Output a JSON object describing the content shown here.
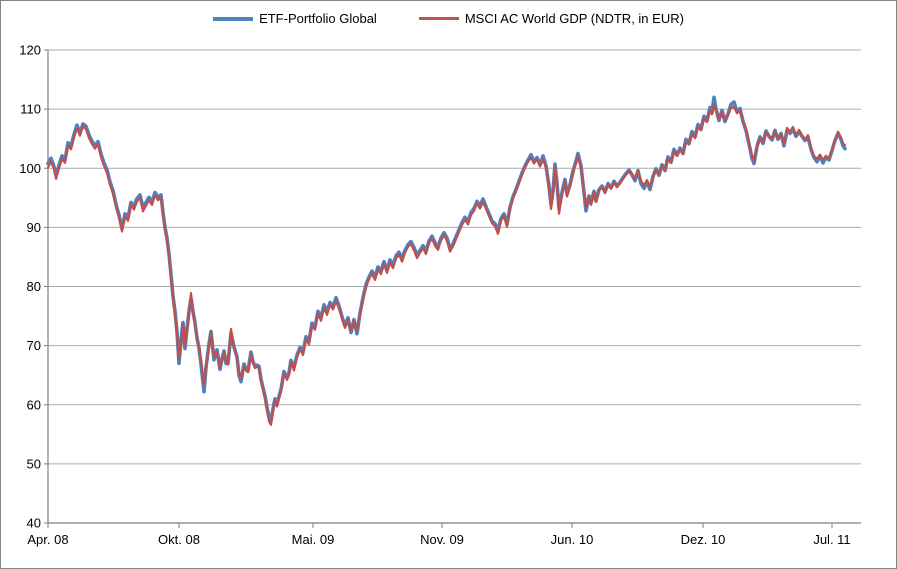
{
  "chart_data": {
    "type": "line",
    "title": "",
    "xlabel": "",
    "ylabel": "",
    "ylim": [
      40,
      120
    ],
    "y_ticks": [
      40,
      50,
      60,
      70,
      80,
      90,
      100,
      110,
      120
    ],
    "grid": "horizontal",
    "legend_position": "top-center",
    "x_unit": "trading-day index from Apr. 08",
    "x_axis_range": [
      0,
      813
    ],
    "x_ticks": [
      {
        "label": "Apr. 08",
        "i": 0
      },
      {
        "label": "Okt. 08",
        "i": 131
      },
      {
        "label": "Mai. 09",
        "i": 265
      },
      {
        "label": "Nov. 09",
        "i": 394
      },
      {
        "label": "Jun. 10",
        "i": 524
      },
      {
        "label": "Dez. 10",
        "i": 655
      },
      {
        "label": "Jul. 11",
        "i": 784
      }
    ],
    "series": [
      {
        "name": "ETF-Portfolio Global",
        "color": "#4F81BD",
        "line_width": 3.6
      },
      {
        "name": "MSCI AC World GDP (NDTR, in EUR)",
        "color": "#C0504D",
        "line_width": 2.2
      }
    ],
    "points_format": "[x_index, ETF-Portfolio Global, MSCI AC World GDP]",
    "points": [
      [
        0,
        100.8,
        100.1
      ],
      [
        3,
        101.7,
        101.2
      ],
      [
        6,
        100.3,
        99.8
      ],
      [
        8,
        98.8,
        98.2
      ],
      [
        11,
        100.5,
        100.0
      ],
      [
        14,
        102.1,
        101.6
      ],
      [
        17,
        101.4,
        100.9
      ],
      [
        20,
        104.3,
        103.8
      ],
      [
        23,
        103.7,
        103.2
      ],
      [
        26,
        105.7,
        105.2
      ],
      [
        29,
        107.3,
        106.8
      ],
      [
        32,
        106.0,
        105.5
      ],
      [
        35,
        107.5,
        107.1
      ],
      [
        38,
        107.1,
        106.6
      ],
      [
        41,
        105.6,
        105.1
      ],
      [
        44,
        104.6,
        104.1
      ],
      [
        47,
        103.8,
        103.3
      ],
      [
        50,
        104.5,
        104.1
      ],
      [
        53,
        102.4,
        101.9
      ],
      [
        56,
        100.9,
        100.4
      ],
      [
        59,
        99.7,
        99.2
      ],
      [
        62,
        97.7,
        97.2
      ],
      [
        65,
        96.2,
        95.7
      ],
      [
        68,
        93.9,
        93.4
      ],
      [
        71,
        92.1,
        91.6
      ],
      [
        74,
        89.8,
        89.3
      ],
      [
        77,
        92.3,
        91.9
      ],
      [
        80,
        91.6,
        91.1
      ],
      [
        83,
        94.2,
        93.8
      ],
      [
        86,
        93.5,
        93.0
      ],
      [
        89,
        94.9,
        94.4
      ],
      [
        92,
        95.5,
        95.0
      ],
      [
        95,
        93.3,
        92.7
      ],
      [
        98,
        94.2,
        93.7
      ],
      [
        101,
        95.1,
        94.6
      ],
      [
        104,
        94.3,
        93.8
      ],
      [
        107,
        95.9,
        95.5
      ],
      [
        110,
        95.1,
        94.6
      ],
      [
        113,
        95.5,
        95.1
      ],
      [
        115,
        92.5,
        92.0
      ],
      [
        117,
        90.0,
        89.5
      ],
      [
        119,
        88.2,
        87.7
      ],
      [
        121,
        85.5,
        85.0
      ],
      [
        123,
        82.0,
        81.5
      ],
      [
        125,
        78.4,
        78.0
      ],
      [
        127,
        75.8,
        75.4
      ],
      [
        129,
        72.3,
        72.0
      ],
      [
        131,
        67.0,
        67.8
      ],
      [
        133,
        70.9,
        70.5
      ],
      [
        135,
        73.9,
        73.6
      ],
      [
        137,
        69.5,
        70.0
      ],
      [
        139,
        72.8,
        72.5
      ],
      [
        141,
        75.8,
        75.5
      ],
      [
        143,
        78.0,
        78.9
      ],
      [
        145,
        75.8,
        75.5
      ],
      [
        147,
        73.9,
        73.5
      ],
      [
        149,
        71.3,
        71.0
      ],
      [
        151,
        69.6,
        70.0
      ],
      [
        153,
        66.9,
        67.5
      ],
      [
        156,
        62.2,
        63.4
      ],
      [
        158,
        66.3,
        66.0
      ],
      [
        161,
        70.3,
        70.0
      ],
      [
        163,
        72.4,
        72.2
      ],
      [
        166,
        67.6,
        68.0
      ],
      [
        169,
        69.3,
        69.0
      ],
      [
        172,
        66.0,
        66.3
      ],
      [
        174,
        67.8,
        67.5
      ],
      [
        176,
        69.1,
        68.8
      ],
      [
        178,
        67.0,
        67.3
      ],
      [
        180,
        67.0,
        66.8
      ],
      [
        183,
        72.1,
        72.8
      ],
      [
        186,
        69.8,
        69.5
      ],
      [
        189,
        68.1,
        67.8
      ],
      [
        191,
        65.0,
        65.3
      ],
      [
        193,
        63.9,
        64.5
      ],
      [
        196,
        66.9,
        66.6
      ],
      [
        198,
        66.0,
        65.8
      ],
      [
        200,
        65.8,
        65.5
      ],
      [
        203,
        68.9,
        68.5
      ],
      [
        205,
        67.3,
        67.0
      ],
      [
        207,
        66.5,
        66.2
      ],
      [
        209,
        66.7,
        66.4
      ],
      [
        211,
        66.5,
        66.3
      ],
      [
        213,
        64.3,
        64.0
      ],
      [
        215,
        62.9,
        62.5
      ],
      [
        217,
        61.5,
        61.0
      ],
      [
        219,
        59.6,
        59.0
      ],
      [
        221,
        57.9,
        57.2
      ],
      [
        223,
        57.4,
        56.6
      ],
      [
        225,
        59.3,
        58.8
      ],
      [
        227,
        61.0,
        60.6
      ],
      [
        229,
        60.2,
        59.7
      ],
      [
        231,
        61.4,
        61.0
      ],
      [
        233,
        62.6,
        62.2
      ],
      [
        236,
        65.6,
        65.3
      ],
      [
        239,
        64.6,
        64.2
      ],
      [
        241,
        65.4,
        65.0
      ],
      [
        243,
        67.5,
        67.2
      ],
      [
        246,
        66.3,
        65.8
      ],
      [
        249,
        68.4,
        68.0
      ],
      [
        252,
        69.7,
        69.4
      ],
      [
        255,
        68.9,
        68.4
      ],
      [
        258,
        71.5,
        71.1
      ],
      [
        261,
        70.7,
        70.2
      ],
      [
        264,
        73.8,
        73.4
      ],
      [
        267,
        73.2,
        72.7
      ],
      [
        270,
        75.8,
        75.4
      ],
      [
        273,
        74.7,
        74.2
      ],
      [
        276,
        76.9,
        76.4
      ],
      [
        279,
        75.7,
        75.2
      ],
      [
        282,
        77.3,
        76.9
      ],
      [
        285,
        76.6,
        76.1
      ],
      [
        288,
        78.1,
        77.5
      ],
      [
        291,
        76.7,
        76.3
      ],
      [
        294,
        74.9,
        74.6
      ],
      [
        297,
        73.3,
        73.0
      ],
      [
        300,
        74.7,
        74.4
      ],
      [
        303,
        72.2,
        72.6
      ],
      [
        306,
        74.4,
        74.1
      ],
      [
        309,
        72.0,
        72.5
      ],
      [
        312,
        75.5,
        75.1
      ],
      [
        315,
        78.1,
        77.7
      ],
      [
        318,
        80.3,
        79.9
      ],
      [
        321,
        81.6,
        81.2
      ],
      [
        324,
        82.6,
        82.2
      ],
      [
        327,
        81.6,
        81.1
      ],
      [
        330,
        83.3,
        82.9
      ],
      [
        333,
        82.6,
        82.1
      ],
      [
        336,
        84.2,
        83.7
      ],
      [
        339,
        82.7,
        82.3
      ],
      [
        342,
        84.5,
        84.1
      ],
      [
        345,
        83.6,
        83.1
      ],
      [
        348,
        85.2,
        84.7
      ],
      [
        351,
        85.8,
        85.4
      ],
      [
        354,
        84.7,
        84.2
      ],
      [
        357,
        86.1,
        85.7
      ],
      [
        360,
        87.1,
        86.7
      ],
      [
        363,
        87.6,
        87.2
      ],
      [
        366,
        86.6,
        86.1
      ],
      [
        369,
        85.3,
        84.8
      ],
      [
        372,
        86.1,
        85.7
      ],
      [
        375,
        86.9,
        86.5
      ],
      [
        378,
        86.0,
        85.5
      ],
      [
        381,
        87.7,
        87.3
      ],
      [
        384,
        88.5,
        88.1
      ],
      [
        387,
        87.4,
        86.9
      ],
      [
        390,
        86.7,
        86.2
      ],
      [
        393,
        88.2,
        87.8
      ],
      [
        396,
        89.1,
        88.7
      ],
      [
        399,
        88.2,
        87.7
      ],
      [
        402,
        86.4,
        85.9
      ],
      [
        405,
        87.2,
        86.8
      ],
      [
        408,
        88.4,
        88.0
      ],
      [
        411,
        89.6,
        89.2
      ],
      [
        414,
        90.8,
        90.4
      ],
      [
        417,
        91.7,
        91.3
      ],
      [
        420,
        91.0,
        90.5
      ],
      [
        423,
        92.5,
        92.1
      ],
      [
        426,
        93.2,
        92.8
      ],
      [
        429,
        94.4,
        94.0
      ],
      [
        432,
        93.6,
        93.2
      ],
      [
        435,
        94.8,
        94.3
      ],
      [
        438,
        93.5,
        93.1
      ],
      [
        441,
        92.3,
        91.9
      ],
      [
        444,
        91.1,
        90.7
      ],
      [
        447,
        90.6,
        90.2
      ],
      [
        450,
        89.5,
        88.9
      ],
      [
        453,
        91.5,
        91.1
      ],
      [
        456,
        92.3,
        91.9
      ],
      [
        459,
        90.5,
        90.1
      ],
      [
        462,
        93.4,
        93.1
      ],
      [
        465,
        95.2,
        94.9
      ],
      [
        468,
        96.4,
        96.1
      ],
      [
        471,
        97.8,
        97.5
      ],
      [
        474,
        99.2,
        98.9
      ],
      [
        477,
        100.4,
        100.1
      ],
      [
        480,
        101.4,
        101.1
      ],
      [
        483,
        102.3,
        101.8
      ],
      [
        486,
        101.1,
        100.8
      ],
      [
        489,
        101.8,
        101.5
      ],
      [
        492,
        100.6,
        100.3
      ],
      [
        495,
        102.1,
        101.5
      ],
      [
        498,
        100.4,
        100.1
      ],
      [
        501,
        97.0,
        96.7
      ],
      [
        503,
        93.8,
        93.1
      ],
      [
        505,
        96.1,
        95.7
      ],
      [
        507,
        100.7,
        100.4
      ],
      [
        509,
        97.4,
        97.1
      ],
      [
        511,
        93.2,
        92.3
      ],
      [
        514,
        95.9,
        95.5
      ],
      [
        517,
        98.1,
        97.8
      ],
      [
        519,
        95.6,
        95.2
      ],
      [
        522,
        97.2,
        96.9
      ],
      [
        525,
        99.5,
        99.2
      ],
      [
        528,
        101.2,
        100.9
      ],
      [
        530,
        102.5,
        101.9
      ],
      [
        533,
        100.4,
        100.1
      ],
      [
        535,
        97.4,
        97.2
      ],
      [
        538,
        92.8,
        93.4
      ],
      [
        541,
        95.3,
        95.1
      ],
      [
        543,
        94.1,
        93.8
      ],
      [
        546,
        96.1,
        95.9
      ],
      [
        548,
        94.5,
        94.3
      ],
      [
        551,
        96.4,
        96.2
      ],
      [
        554,
        97.0,
        96.8
      ],
      [
        557,
        96.0,
        95.8
      ],
      [
        560,
        97.4,
        97.2
      ],
      [
        563,
        96.7,
        96.5
      ],
      [
        566,
        97.8,
        97.6
      ],
      [
        569,
        97.0,
        96.8
      ],
      [
        572,
        97.6,
        97.4
      ],
      [
        575,
        98.4,
        98.2
      ],
      [
        578,
        99.1,
        98.9
      ],
      [
        581,
        99.7,
        99.5
      ],
      [
        584,
        98.9,
        99.1
      ],
      [
        587,
        97.9,
        98.2
      ],
      [
        590,
        99.6,
        99.5
      ],
      [
        593,
        97.4,
        97.9
      ],
      [
        596,
        96.6,
        97.1
      ],
      [
        599,
        97.7,
        98.0
      ],
      [
        602,
        96.4,
        96.8
      ],
      [
        605,
        98.6,
        98.5
      ],
      [
        608,
        99.9,
        99.7
      ],
      [
        611,
        98.8,
        99.0
      ],
      [
        614,
        100.6,
        100.4
      ],
      [
        617,
        99.6,
        99.7
      ],
      [
        620,
        101.9,
        101.6
      ],
      [
        623,
        101.0,
        100.9
      ],
      [
        626,
        103.2,
        102.9
      ],
      [
        629,
        102.2,
        102.1
      ],
      [
        632,
        103.4,
        103.1
      ],
      [
        635,
        102.5,
        102.4
      ],
      [
        638,
        104.9,
        104.5
      ],
      [
        641,
        104.2,
        104.0
      ],
      [
        644,
        106.2,
        105.8
      ],
      [
        647,
        105.3,
        105.1
      ],
      [
        650,
        107.4,
        107.0
      ],
      [
        653,
        106.6,
        106.4
      ],
      [
        656,
        108.8,
        108.4
      ],
      [
        659,
        108.0,
        107.8
      ],
      [
        662,
        110.3,
        109.8
      ],
      [
        664,
        109.4,
        109.1
      ],
      [
        666,
        112.0,
        110.7
      ],
      [
        668,
        110.0,
        109.6
      ],
      [
        671,
        108.1,
        108.4
      ],
      [
        674,
        109.8,
        109.5
      ],
      [
        677,
        107.9,
        108.1
      ],
      [
        680,
        109.2,
        109.0
      ],
      [
        683,
        110.8,
        110.2
      ],
      [
        686,
        111.2,
        110.4
      ],
      [
        689,
        109.6,
        109.3
      ],
      [
        692,
        110.1,
        109.8
      ],
      [
        695,
        107.9,
        108.1
      ],
      [
        698,
        106.4,
        106.7
      ],
      [
        701,
        104.1,
        104.4
      ],
      [
        704,
        101.7,
        102.1
      ],
      [
        706,
        100.8,
        101.3
      ],
      [
        709,
        103.7,
        103.6
      ],
      [
        712,
        105.3,
        105.1
      ],
      [
        715,
        104.2,
        104.4
      ],
      [
        718,
        106.3,
        106.1
      ],
      [
        721,
        105.4,
        105.5
      ],
      [
        724,
        104.8,
        105.0
      ],
      [
        727,
        106.4,
        106.2
      ],
      [
        730,
        104.9,
        105.1
      ],
      [
        733,
        105.9,
        105.8
      ],
      [
        736,
        103.8,
        104.3
      ],
      [
        739,
        106.4,
        106.8
      ],
      [
        742,
        105.9,
        106.2
      ],
      [
        745,
        106.6,
        107.0
      ],
      [
        748,
        105.4,
        105.6
      ],
      [
        751,
        106.2,
        106.5
      ],
      [
        754,
        105.4,
        105.6
      ],
      [
        757,
        104.7,
        104.9
      ],
      [
        760,
        105.3,
        105.6
      ],
      [
        763,
        103.2,
        103.5
      ],
      [
        766,
        101.8,
        102.1
      ],
      [
        769,
        101.1,
        101.6
      ],
      [
        772,
        102.1,
        102.3
      ],
      [
        775,
        100.9,
        101.4
      ],
      [
        778,
        101.9,
        102.1
      ],
      [
        781,
        101.4,
        101.7
      ],
      [
        784,
        103.0,
        103.1
      ],
      [
        787,
        104.7,
        104.9
      ],
      [
        790,
        105.9,
        106.2
      ],
      [
        793,
        104.9,
        105.2
      ],
      [
        795,
        103.8,
        104.2
      ],
      [
        797,
        103.3,
        103.9
      ]
    ],
    "colors": {
      "grid_line": "#ABABAB",
      "axis_line": "#808080",
      "tick_label": "#000000",
      "background": "#FFFFFF",
      "frame_border": "#848484"
    }
  }
}
